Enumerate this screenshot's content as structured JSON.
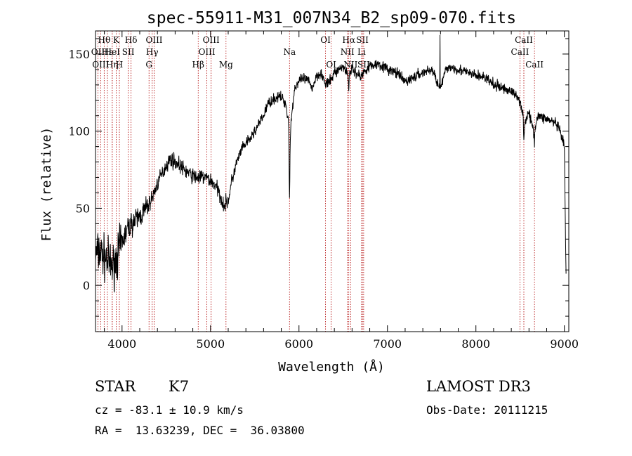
{
  "chart_data": {
    "type": "line",
    "title": "spec-55911-M31_007N34_B2_sp09-070.fits",
    "xlabel": "Wavelength (Å)",
    "ylabel": "Flux (relative)",
    "xlim": [
      3700,
      9050
    ],
    "ylim": [
      -30,
      165
    ],
    "xticks": [
      4000,
      5000,
      6000,
      7000,
      8000,
      9000
    ],
    "yticks": [
      0,
      50,
      100,
      150
    ],
    "x_tick_labels": [
      "4000",
      "5000",
      "6000",
      "7000",
      "8000",
      "9000"
    ],
    "y_tick_labels": [
      "0",
      "50",
      "100",
      "150"
    ],
    "grid": false,
    "series": [
      {
        "name": "flux",
        "approximate_anchors": [
          [
            3700,
            20
          ],
          [
            3750,
            22
          ],
          [
            3800,
            18
          ],
          [
            3850,
            15
          ],
          [
            3900,
            12
          ],
          [
            3950,
            20
          ],
          [
            4000,
            28
          ],
          [
            4050,
            35
          ],
          [
            4100,
            40
          ],
          [
            4150,
            42
          ],
          [
            4200,
            45
          ],
          [
            4250,
            48
          ],
          [
            4300,
            52
          ],
          [
            4350,
            58
          ],
          [
            4400,
            66
          ],
          [
            4450,
            72
          ],
          [
            4500,
            78
          ],
          [
            4550,
            82
          ],
          [
            4600,
            80
          ],
          [
            4650,
            78
          ],
          [
            4700,
            75
          ],
          [
            4750,
            73
          ],
          [
            4800,
            71
          ],
          [
            4850,
            70
          ],
          [
            4900,
            70
          ],
          [
            4950,
            70
          ],
          [
            5000,
            68
          ],
          [
            5050,
            65
          ],
          [
            5100,
            60
          ],
          [
            5150,
            52
          ],
          [
            5200,
            55
          ],
          [
            5250,
            70
          ],
          [
            5300,
            80
          ],
          [
            5350,
            88
          ],
          [
            5400,
            92
          ],
          [
            5450,
            95
          ],
          [
            5500,
            100
          ],
          [
            5550,
            105
          ],
          [
            5600,
            110
          ],
          [
            5650,
            118
          ],
          [
            5700,
            120
          ],
          [
            5750,
            122
          ],
          [
            5800,
            122
          ],
          [
            5850,
            118
          ],
          [
            5900,
            100
          ],
          [
            5950,
            128
          ],
          [
            6000,
            132
          ],
          [
            6050,
            134
          ],
          [
            6100,
            133
          ],
          [
            6150,
            128
          ],
          [
            6200,
            136
          ],
          [
            6250,
            138
          ],
          [
            6300,
            130
          ],
          [
            6350,
            132
          ],
          [
            6400,
            138
          ],
          [
            6450,
            140
          ],
          [
            6500,
            142
          ],
          [
            6550,
            138
          ],
          [
            6600,
            140
          ],
          [
            6650,
            138
          ],
          [
            6700,
            135
          ],
          [
            6750,
            140
          ],
          [
            6800,
            142
          ],
          [
            6900,
            144
          ],
          [
            7000,
            140
          ],
          [
            7100,
            138
          ],
          [
            7200,
            132
          ],
          [
            7300,
            135
          ],
          [
            7400,
            138
          ],
          [
            7500,
            140
          ],
          [
            7600,
            128
          ],
          [
            7650,
            138
          ],
          [
            7700,
            142
          ],
          [
            7800,
            140
          ],
          [
            7900,
            138
          ],
          [
            8000,
            136
          ],
          [
            8100,
            135
          ],
          [
            8200,
            130
          ],
          [
            8300,
            128
          ],
          [
            8400,
            126
          ],
          [
            8500,
            120
          ],
          [
            8550,
            105
          ],
          [
            8600,
            112
          ],
          [
            8650,
            100
          ],
          [
            8700,
            110
          ],
          [
            8800,
            108
          ],
          [
            8900,
            105
          ],
          [
            8950,
            100
          ],
          [
            9000,
            90
          ],
          [
            9020,
            0
          ]
        ],
        "features": [
          {
            "wavelength": 5893,
            "depth": 45,
            "width": 6
          },
          {
            "wavelength": 6563,
            "depth": 15,
            "width": 5
          },
          {
            "wavelength": 8542,
            "depth": 12,
            "width": 5
          },
          {
            "wavelength": 8662,
            "depth": 10,
            "width": 5
          },
          {
            "wavelength": 7594,
            "depth": -30,
            "width": 1
          }
        ],
        "noise": [
          {
            "from": 3700,
            "to": 4000,
            "amplitude": 14
          },
          {
            "from": 4000,
            "to": 4300,
            "amplitude": 8
          },
          {
            "from": 4300,
            "to": 5300,
            "amplitude": 5
          },
          {
            "from": 5300,
            "to": 9050,
            "amplitude": 3.5
          }
        ]
      }
    ],
    "line_markers": [
      {
        "label": "Hθ",
        "x": 3798,
        "row": 0
      },
      {
        "label": "OII",
        "x": 3727,
        "row": 1
      },
      {
        "label": "OIII",
        "x": 3758,
        "row": 2
      },
      {
        "label": "Hε",
        "x": 3835,
        "row": 1
      },
      {
        "label": "Hη",
        "x": 3889,
        "row": 2
      },
      {
        "label": "K",
        "x": 3934,
        "row": 0
      },
      {
        "label": "HeI",
        "x": 3889,
        "row": 1
      },
      {
        "label": "H",
        "x": 3970,
        "row": 2
      },
      {
        "label": "SII",
        "x": 4070,
        "row": 1
      },
      {
        "label": "Hδ",
        "x": 4102,
        "row": 0
      },
      {
        "label": "OIII",
        "x": 4363,
        "row": 0
      },
      {
        "label": "Hγ",
        "x": 4341,
        "row": 1
      },
      {
        "label": "G",
        "x": 4305,
        "row": 2
      },
      {
        "label": "Hβ",
        "x": 4861,
        "row": 2
      },
      {
        "label": "OIII",
        "x": 5007,
        "row": 0
      },
      {
        "label": "OIII",
        "x": 4959,
        "row": 1
      },
      {
        "label": "Mg",
        "x": 5175,
        "row": 2
      },
      {
        "label": "Na",
        "x": 5893,
        "row": 1
      },
      {
        "label": "OI",
        "x": 6300,
        "row": 0
      },
      {
        "label": "OI",
        "x": 6364,
        "row": 2
      },
      {
        "label": "Hα",
        "x": 6563,
        "row": 0
      },
      {
        "label": "NII",
        "x": 6548,
        "row": 1
      },
      {
        "label": "NII",
        "x": 6584,
        "row": 2
      },
      {
        "label": "SII",
        "x": 6717,
        "row": 0
      },
      {
        "label": "Li",
        "x": 6708,
        "row": 1
      },
      {
        "label": "SII",
        "x": 6731,
        "row": 2
      },
      {
        "label": "CaII",
        "x": 8542,
        "row": 0
      },
      {
        "label": "CaII",
        "x": 8498,
        "row": 1
      },
      {
        "label": "CaII",
        "x": 8662,
        "row": 2
      }
    ]
  },
  "info": {
    "class_label": "STAR",
    "subclass": "K7",
    "survey": "LAMOST DR3",
    "cz_text": "cz = -83.1 ± 10.9 km/s",
    "obs_date": "Obs-Date: 20111215",
    "coords": "RA =  13.63239, DEC =  36.03800"
  }
}
